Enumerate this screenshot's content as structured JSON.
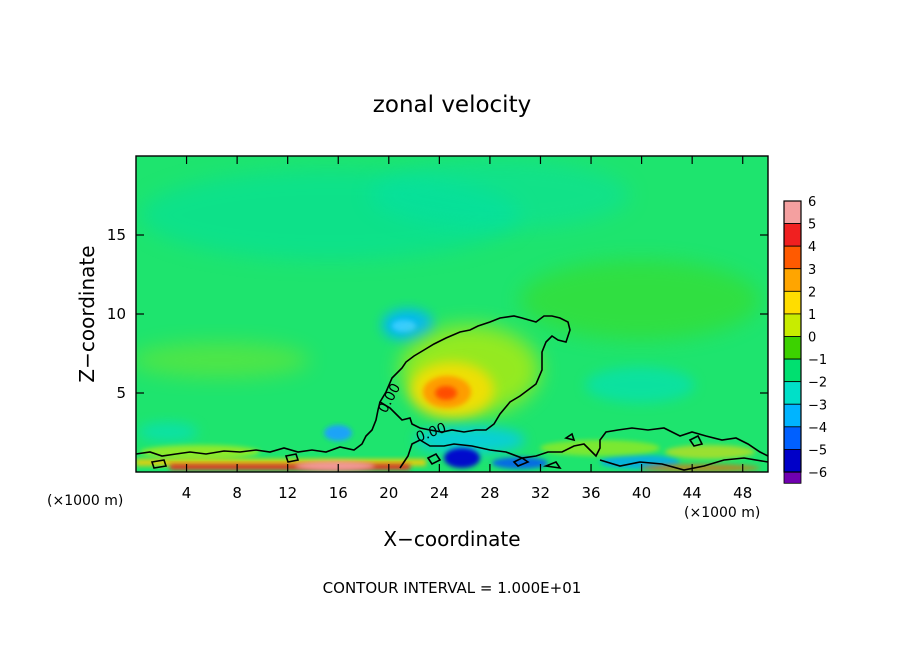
{
  "chart_data": {
    "type": "heatmap",
    "title": "zonal velocity",
    "xlabel": "X−coordinate",
    "ylabel": "Z−coordinate",
    "x_unit_left": "(×1000 m)",
    "x_unit_right": "(×1000 m)",
    "xlim": [
      0,
      50
    ],
    "ylim": [
      0,
      20
    ],
    "x_ticks": [
      4,
      8,
      12,
      16,
      20,
      24,
      28,
      32,
      36,
      40,
      44,
      48
    ],
    "y_ticks": [
      5,
      10,
      15
    ],
    "footer": "CONTOUR INTERVAL = 1.000E+01",
    "contour_label": "0.00",
    "colorbar": {
      "levels": [
        6,
        5,
        4,
        3,
        2,
        1,
        0,
        -1,
        -2,
        -3,
        -4,
        -5,
        -6
      ],
      "level_labels": [
        "6",
        "5",
        "4",
        "3",
        "2",
        "1",
        "0",
        "−1",
        "−2",
        "−3",
        "−4",
        "−5",
        "−6"
      ],
      "colors": [
        "#f4a0a0",
        "#f02020",
        "#ff5a00",
        "#ffa500",
        "#ffdd00",
        "#c8ec00",
        "#3cd200",
        "#00e070",
        "#00e0c8",
        "#00b4ff",
        "#0060ff",
        "#0000c8",
        "#7000b0"
      ]
    },
    "background_color": "#1ee46e",
    "features": [
      {
        "kind": "positive_core",
        "x": 24.5,
        "z": 5.0,
        "value": 4
      },
      {
        "kind": "negative_core",
        "x": 21.5,
        "z": 9.0,
        "value": -2
      },
      {
        "kind": "negative_core",
        "x": 15.5,
        "z": 2.3,
        "value": -2.5
      },
      {
        "kind": "negative_core",
        "x": 26.0,
        "z": 0.8,
        "value": -5
      },
      {
        "kind": "negative_core",
        "x": 40.0,
        "z": 5.5,
        "value": -1.5
      },
      {
        "kind": "positive_band",
        "x": 16.0,
        "z": 0.4,
        "value": 5
      }
    ]
  }
}
